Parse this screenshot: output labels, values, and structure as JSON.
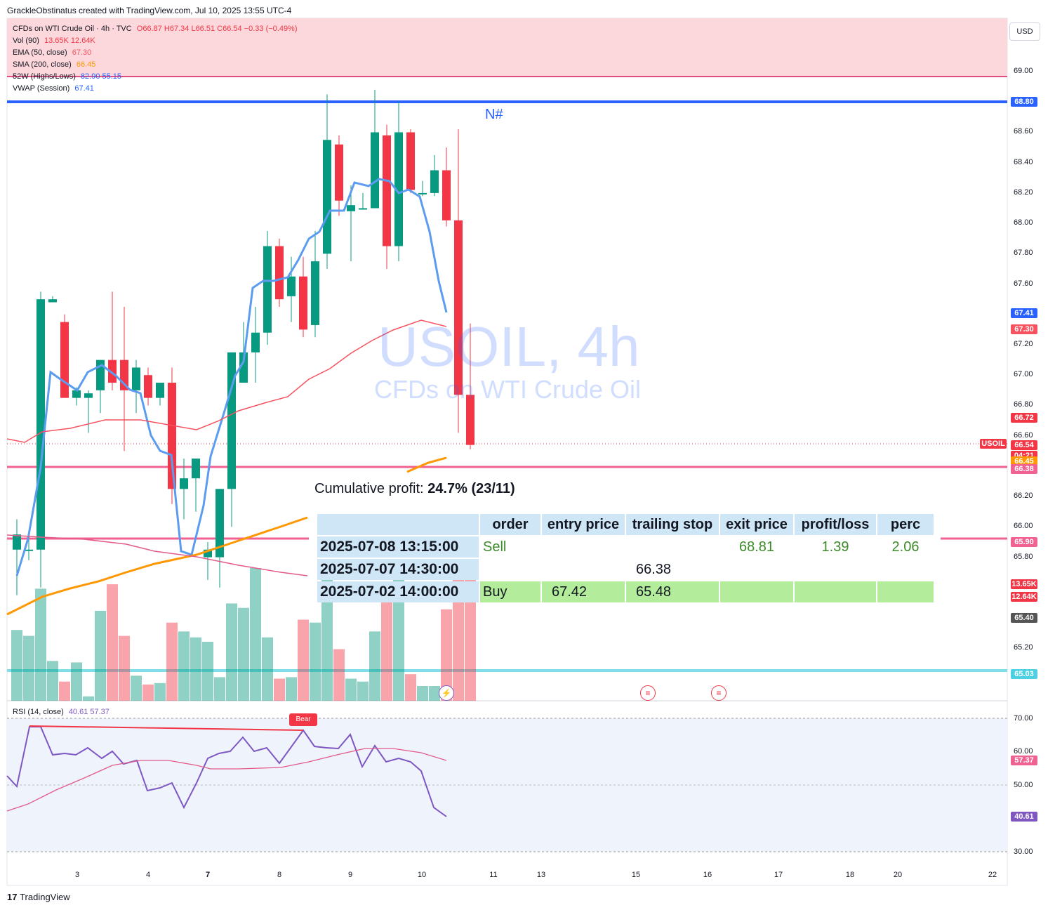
{
  "header": "GrackleObstinatus created with TradingView.com, Jul 10, 2025 13:55 UTC-4",
  "legend": {
    "symbol": "CFDs on WTI Crude Oil · 4h · TVC",
    "ohlc": "O66.87 H67.34 L66.51 C66.54 −0.33 (−0.49%)",
    "vol_label": "Vol (90)",
    "vol_values": "13.65K 12.64K",
    "ema_label": "EMA (50, close)",
    "ema_value": "67.30",
    "sma_label": "SMA (200, close)",
    "sma_value": "66.45",
    "w52_label": "52W (Highs/Lows)",
    "w52_values": "82.90 55.15",
    "vwap_label": "VWAP (Session)",
    "vwap_value": "67.41"
  },
  "currency": "USD",
  "watermark": {
    "title": "USOIL, 4h",
    "subtitle": "CFDs on WTI Crude Oil"
  },
  "marker_text": "N#",
  "price_labels": [
    {
      "text": "68.80",
      "color": "#2962ff",
      "price": 68.8
    },
    {
      "text": "67.41",
      "color": "#2962ff",
      "price": 67.41
    },
    {
      "text": "67.30",
      "color": "#f7525f",
      "price": 67.3
    },
    {
      "text": "66.72",
      "color": "#f23645",
      "price": 66.72
    },
    {
      "text": "66.54",
      "color": "#f23645",
      "price": 66.54
    },
    {
      "text": "04:21",
      "color": "#f23645",
      "price": 66.47
    },
    {
      "text": "66.45",
      "color": "#ff9800",
      "price": 66.43
    },
    {
      "text": "66.38",
      "color": "#f06292",
      "price": 66.38
    },
    {
      "text": "65.90",
      "color": "#f06292",
      "price": 65.9
    },
    {
      "text": "13.65K",
      "color": "#f23645",
      "price": 65.62
    },
    {
      "text": "12.64K",
      "color": "#f23645",
      "price": 65.54
    },
    {
      "text": "65.40",
      "color": "#555555",
      "price": 65.4
    },
    {
      "text": "65.03",
      "color": "#4dd0e1",
      "price": 65.03
    }
  ],
  "usoil_tag": "USOIL",
  "price_axis_ticks": [
    "69.00",
    "68.60",
    "68.40",
    "68.20",
    "68.00",
    "67.80",
    "67.60",
    "67.20",
    "67.00",
    "66.80",
    "66.60",
    "66.20",
    "66.00",
    "65.80",
    "65.20"
  ],
  "time_axis": [
    "3",
    "4",
    "7",
    "8",
    "9",
    "10",
    "11",
    "13",
    "15",
    "16",
    "17",
    "18",
    "20",
    "22"
  ],
  "rsi": {
    "label": "RSI (14, close)",
    "values": "40.61 57.37",
    "ticks": [
      "70.00",
      "60.00",
      "50.00",
      "30.00"
    ],
    "tag1": "57.37",
    "tag2": "40.61",
    "bear": "Bear"
  },
  "profit": {
    "label": "Cumulative profit:",
    "value": "24.7% (23/11)"
  },
  "table": {
    "headers": [
      "order",
      "entry price",
      "trailing stop",
      "exit price",
      "profit/loss",
      "perc"
    ],
    "rows": [
      {
        "date": "2025-07-08 13:15:00",
        "order": "Sell",
        "entry": "",
        "stop": "",
        "exit": "68.81",
        "pl": "1.39",
        "perc": "2.06"
      },
      {
        "date": "2025-07-07 14:30:00",
        "order": "",
        "entry": "",
        "stop": "66.38",
        "exit": "",
        "pl": "",
        "perc": ""
      },
      {
        "date": "2025-07-02 14:00:00",
        "order": "Buy",
        "entry": "67.42",
        "stop": "65.48",
        "exit": "",
        "pl": "",
        "perc": ""
      }
    ]
  },
  "branding": "TradingView",
  "chart_data": {
    "type": "candlestick",
    "ylim": [
      64.95,
      69.3
    ],
    "candles": [
      [
        65.85,
        66.05,
        65.55,
        65.95
      ],
      [
        65.85,
        65.95,
        65.78,
        65.85
      ],
      [
        65.85,
        67.55,
        65.6,
        67.5
      ],
      [
        67.48,
        67.52,
        67.48,
        67.5
      ],
      [
        67.35,
        67.4,
        66.85,
        66.85
      ],
      [
        66.85,
        66.92,
        66.8,
        66.9
      ],
      [
        66.85,
        66.9,
        66.62,
        66.88
      ],
      [
        66.9,
        67.1,
        66.75,
        67.1
      ],
      [
        67.1,
        67.55,
        66.9,
        66.95
      ],
      [
        67.1,
        67.45,
        66.5,
        66.9
      ],
      [
        66.9,
        67.1,
        66.75,
        67.05
      ],
      [
        67.0,
        67.05,
        66.8,
        66.85
      ],
      [
        66.85,
        66.95,
        66.8,
        66.95
      ],
      [
        66.95,
        67.05,
        66.15,
        66.25
      ],
      [
        66.25,
        66.45,
        66.05,
        66.32
      ],
      [
        66.32,
        66.45,
        66.1,
        66.45
      ],
      [
        65.8,
        65.9,
        65.65,
        65.85
      ],
      [
        65.8,
        66.25,
        65.6,
        66.25
      ],
      [
        66.25,
        67.15,
        66.0,
        67.15
      ],
      [
        66.95,
        67.35,
        66.95,
        67.15
      ],
      [
        67.15,
        67.45,
        66.95,
        67.28
      ],
      [
        67.28,
        67.95,
        67.2,
        67.85
      ],
      [
        67.85,
        67.9,
        67.45,
        67.5
      ],
      [
        67.52,
        67.78,
        67.35,
        67.65
      ],
      [
        67.65,
        67.78,
        67.25,
        67.3
      ],
      [
        67.33,
        67.95,
        67.25,
        67.75
      ],
      [
        67.8,
        68.85,
        67.7,
        68.55
      ],
      [
        68.52,
        68.58,
        68.05,
        68.15
      ],
      [
        68.08,
        68.25,
        67.75,
        68.12
      ],
      [
        68.1,
        68.2,
        68.1,
        68.1
      ],
      [
        68.1,
        68.88,
        68.1,
        68.6
      ],
      [
        68.58,
        68.65,
        67.7,
        67.85
      ],
      [
        67.85,
        68.8,
        67.75,
        68.6
      ],
      [
        68.6,
        68.62,
        68.2,
        68.22
      ],
      [
        68.2,
        68.28,
        68.18,
        68.2
      ],
      [
        68.2,
        68.45,
        68.18,
        68.35
      ],
      [
        68.35,
        68.5,
        67.98,
        68.02
      ],
      [
        68.02,
        68.62,
        66.62,
        66.87
      ],
      [
        66.87,
        67.34,
        66.51,
        66.54
      ]
    ],
    "volume": [
      0.48,
      0.44,
      0.76,
      0.27,
      0.13,
      0.26,
      0.03,
      0.61,
      0.79,
      0.44,
      0.17,
      0.11,
      0.12,
      0.53,
      0.47,
      0.43,
      0.4,
      0.16,
      0.66,
      0.63,
      0.9,
      0.43,
      0.15,
      0.16,
      0.55,
      0.53,
      0.9,
      0.35,
      0.15,
      0.13,
      0.47,
      0.8,
      0.88,
      0.18,
      0.1,
      0.1,
      0.62,
      0.89,
      0.89
    ]
  }
}
